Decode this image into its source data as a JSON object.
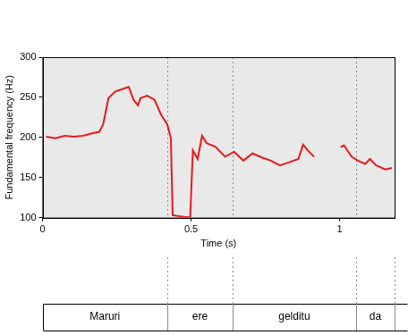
{
  "chart_data": {
    "type": "line",
    "x_label": "Time (s)",
    "y_label": "Fundamental frequency (Hz)",
    "x": [
      0.012,
      0.043,
      0.074,
      0.105,
      0.136,
      0.167,
      0.191,
      0.204,
      0.222,
      0.244,
      0.275,
      0.29,
      0.306,
      0.321,
      0.33,
      0.352,
      0.377,
      0.398,
      0.42,
      0.432,
      0.438,
      0.475,
      0.497,
      0.506,
      0.522,
      0.537,
      0.552,
      0.583,
      0.614,
      0.645,
      0.676,
      0.707,
      0.738,
      0.769,
      0.799,
      0.83,
      0.861,
      0.877,
      0.892,
      0.914,
      0.95,
      1.003,
      1.015,
      1.04,
      1.062,
      1.086,
      1.102,
      1.123,
      1.154,
      1.176
    ],
    "values": [
      201,
      199,
      202,
      201,
      202,
      205,
      207,
      216,
      249,
      257,
      261,
      263,
      247,
      240,
      249,
      252,
      247,
      229,
      216,
      199,
      103,
      101,
      100,
      184,
      173,
      202,
      193,
      188,
      176,
      182,
      171,
      180,
      175,
      171,
      165,
      169,
      173,
      191,
      184,
      176,
      null,
      188,
      190,
      176,
      171,
      167,
      173,
      165,
      160,
      162
    ],
    "color": "#e8191c",
    "line_style": "solid",
    "xlim": [
      0,
      1.185
    ],
    "xticks": [
      0,
      0.5,
      1
    ],
    "ylim": [
      100,
      300
    ],
    "yticks": [
      100,
      150,
      200,
      250,
      300
    ],
    "grid": false,
    "segments": [
      {
        "label": "Maruri",
        "start": 0,
        "end": 0.42
      },
      {
        "label": "ere",
        "start": 0.42,
        "end": 0.64
      },
      {
        "label": "gelditu",
        "start": 0.64,
        "end": 1.055
      },
      {
        "label": "da",
        "start": 1.055,
        "end": 1.185
      }
    ]
  }
}
